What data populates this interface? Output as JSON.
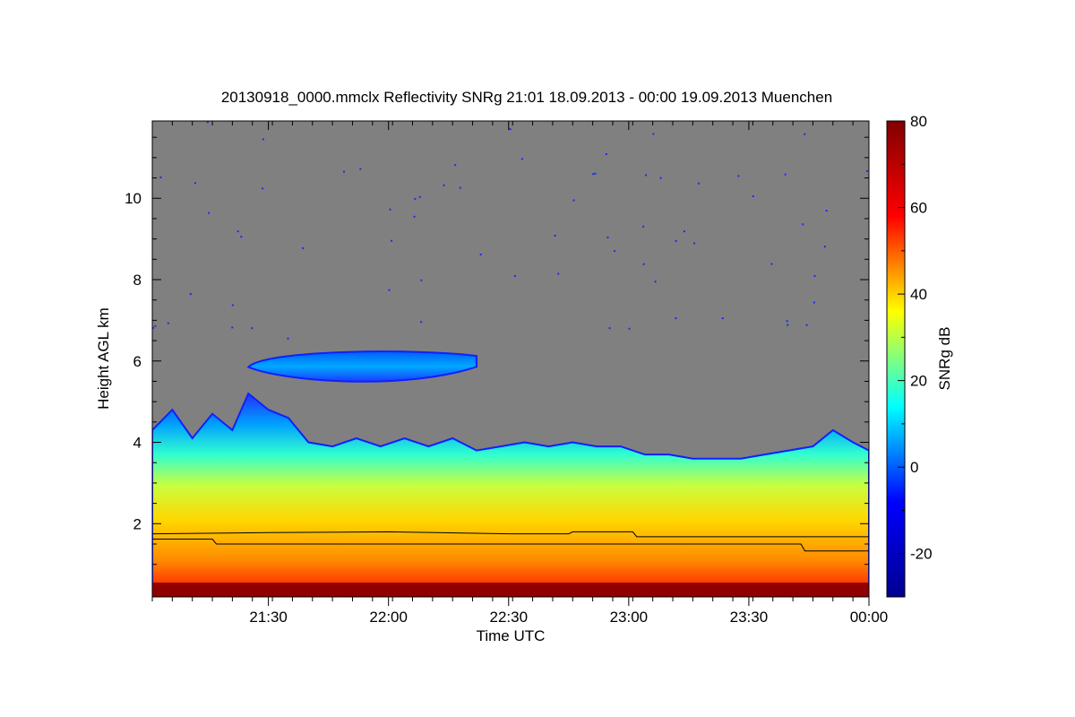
{
  "chart_data": {
    "type": "heatmap",
    "title": "20130918_0000.mmclx Reflectivity SNRg   21:01 18.09.2013 - 00:00 19.09.2013 Muenchen",
    "xlabel": "Time UTC",
    "ylabel": "Height AGL km",
    "x_range_minutes_utc": [
      1261,
      1440
    ],
    "x_ticks": [
      {
        "value": 1290,
        "label": "21:30"
      },
      {
        "value": 1320,
        "label": "22:00"
      },
      {
        "value": 1350,
        "label": "22:30"
      },
      {
        "value": 1380,
        "label": "23:00"
      },
      {
        "value": 1410,
        "label": "23:30"
      },
      {
        "value": 1440,
        "label": "00:00"
      }
    ],
    "ylim": [
      0.2,
      11.9
    ],
    "y_ticks": [
      2,
      4,
      6,
      8,
      10
    ],
    "colorbar": {
      "label": "SNRg dB",
      "range": [
        -30,
        80
      ],
      "ticks": [
        -20,
        0,
        20,
        40,
        60,
        80
      ],
      "colormap": [
        "#00008f",
        "#0000ff",
        "#00ffff",
        "#ffff00",
        "#ff0000",
        "#800000"
      ]
    },
    "no_signal_color": "#808080",
    "cloud_top_km": [
      [
        1261,
        4.3
      ],
      [
        1266,
        4.8
      ],
      [
        1271,
        4.1
      ],
      [
        1276,
        4.7
      ],
      [
        1281,
        4.3
      ],
      [
        1285,
        5.2
      ],
      [
        1290,
        4.8
      ],
      [
        1295,
        4.6
      ],
      [
        1300,
        4.0
      ],
      [
        1306,
        3.9
      ],
      [
        1312,
        4.1
      ],
      [
        1318,
        3.9
      ],
      [
        1324,
        4.1
      ],
      [
        1330,
        3.9
      ],
      [
        1336,
        4.1
      ],
      [
        1342,
        3.8
      ],
      [
        1348,
        3.9
      ],
      [
        1354,
        4.0
      ],
      [
        1360,
        3.9
      ],
      [
        1366,
        4.0
      ],
      [
        1372,
        3.9
      ],
      [
        1378,
        3.9
      ],
      [
        1384,
        3.7
      ],
      [
        1390,
        3.7
      ],
      [
        1396,
        3.6
      ],
      [
        1402,
        3.6
      ],
      [
        1408,
        3.6
      ],
      [
        1414,
        3.7
      ],
      [
        1420,
        3.8
      ],
      [
        1426,
        3.9
      ],
      [
        1431,
        4.3
      ],
      [
        1436,
        4.0
      ],
      [
        1440,
        3.8
      ]
    ],
    "elevated_layer": {
      "start_min": 1285,
      "end_min": 1342,
      "base_km": 5.4,
      "top_km": 6.3
    },
    "line_series": [
      {
        "points": [
          [
            1261,
            1.75
          ],
          [
            1290,
            1.78
          ],
          [
            1320,
            1.8
          ],
          [
            1350,
            1.75
          ],
          [
            1365,
            1.75
          ],
          [
            1366,
            1.8
          ],
          [
            1381,
            1.8
          ],
          [
            1382,
            1.68
          ],
          [
            1440,
            1.68
          ]
        ]
      },
      {
        "points": [
          [
            1261,
            1.62
          ],
          [
            1276,
            1.62
          ],
          [
            1277,
            1.5
          ],
          [
            1423,
            1.5
          ],
          [
            1424,
            1.33
          ],
          [
            1440,
            1.33
          ]
        ]
      }
    ]
  }
}
